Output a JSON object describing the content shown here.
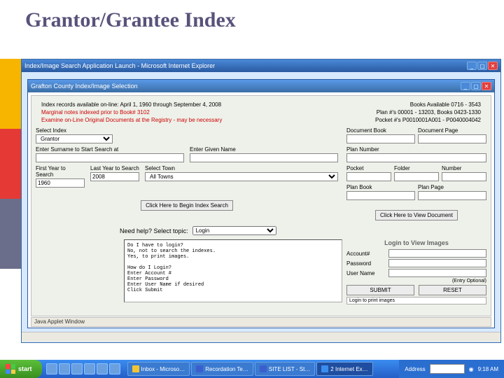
{
  "slide": {
    "title": "Grantor/Grantee Index"
  },
  "ie": {
    "title": "Index/Image Search Application Launch - Microsoft Internet Explorer",
    "status": "Java Applet Window"
  },
  "applet": {
    "title": "Grafton County Index/Image Selection"
  },
  "info": {
    "left1": "Index records available on-line: April 1, 1960 through September 4, 2008",
    "right1": "Books Available 0716 - 3543",
    "left2": "Marginal notes indexed prior to Book# 3102",
    "right2": "Plan #'s 00001 - 13203, Books 0423-1330",
    "left3": "Examine on-Line Original Documents at the Registry - may be necessary",
    "right3": "Pocket #'s P0010001A001 - P0040004042"
  },
  "labels": {
    "selectIndex": "Select Index",
    "enterSurname": "Enter Surname to Start Search at",
    "enterGiven": "Enter Given Name",
    "firstYear": "First Year to Search",
    "lastYear": "Last Year to Search",
    "selectTown": "Select Town",
    "docBook": "Document Book",
    "docPage": "Document Page",
    "planNumber": "Plan Number",
    "pocket": "Pocket",
    "folder": "Folder",
    "number": "Number",
    "planBook": "Plan Book",
    "planPage": "Plan Page",
    "needHelp": "Need help? Select topic:"
  },
  "values": {
    "indexSelected": "Grantor",
    "firstYear": "1960",
    "lastYear": "2008",
    "townSelected": "All Towns",
    "topicSelected": "Login"
  },
  "buttons": {
    "beginSearch": "Click Here to Begin Index Search",
    "viewDoc": "Click Here to View Document",
    "submit": "SUBMIT",
    "reset": "RESET"
  },
  "login": {
    "header": "Login to View Images",
    "account": "Account#",
    "password": "Password",
    "username": "User Name",
    "entryOptional": "(Entry Optional)",
    "helpText": "Do I have to login?\n   No, not to search the indexes.\n   Yes, to print images.\n\nHow do I Login?\n   Enter Account #\n   Enter Password\n   Enter User Name if desired\n   Click Submit",
    "payNote": "Login to print images"
  },
  "taskbar": {
    "start": "start",
    "items": [
      {
        "label": "Inbox - Microso…",
        "color": "#f4c430"
      },
      {
        "label": "Recordation Te…",
        "color": "#3a5fcd"
      },
      {
        "label": "SITE LIST - St…",
        "color": "#3a5fcd"
      },
      {
        "label": "2 Internet Ex…",
        "color": "#3a8df0",
        "active": true
      }
    ],
    "addressLabel": "Address",
    "time": "9:18 AM"
  }
}
